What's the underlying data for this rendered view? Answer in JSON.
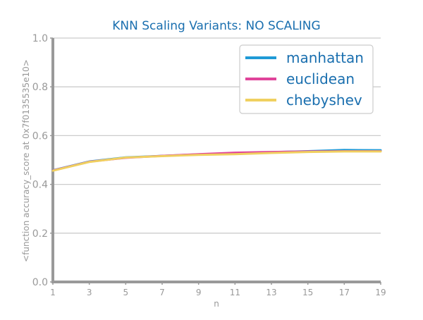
{
  "chart_data": {
    "type": "line",
    "title": "KNN Scaling Variants: NO SCALING",
    "xlabel": "n",
    "ylabel": "<function accuracy_score at 0x7f0135535e10>",
    "xlim": [
      1,
      19
    ],
    "ylim": [
      0.0,
      1.0
    ],
    "xticks": [
      "1",
      "3",
      "5",
      "7",
      "9",
      "11",
      "13",
      "15",
      "17",
      "19"
    ],
    "yticks": [
      "0.0",
      "0.2",
      "0.4",
      "0.6",
      "0.8",
      "1.0"
    ],
    "grid": "horizontal",
    "legend_position": "top-right",
    "x": [
      1,
      3,
      5,
      7,
      9,
      11,
      13,
      15,
      17,
      19
    ],
    "series": [
      {
        "name": "manhattan",
        "color": "#1f9ad6",
        "values": [
          0.458,
          0.494,
          0.511,
          0.517,
          0.523,
          0.527,
          0.532,
          0.536,
          0.541,
          0.54
        ]
      },
      {
        "name": "euclidean",
        "color": "#e0449a",
        "values": [
          0.457,
          0.493,
          0.509,
          0.517,
          0.524,
          0.53,
          0.533,
          0.535,
          0.536,
          0.536
        ]
      },
      {
        "name": "chebyshev",
        "color": "#f0d060",
        "values": [
          0.456,
          0.492,
          0.51,
          0.516,
          0.521,
          0.524,
          0.529,
          0.533,
          0.535,
          0.535
        ]
      }
    ]
  }
}
